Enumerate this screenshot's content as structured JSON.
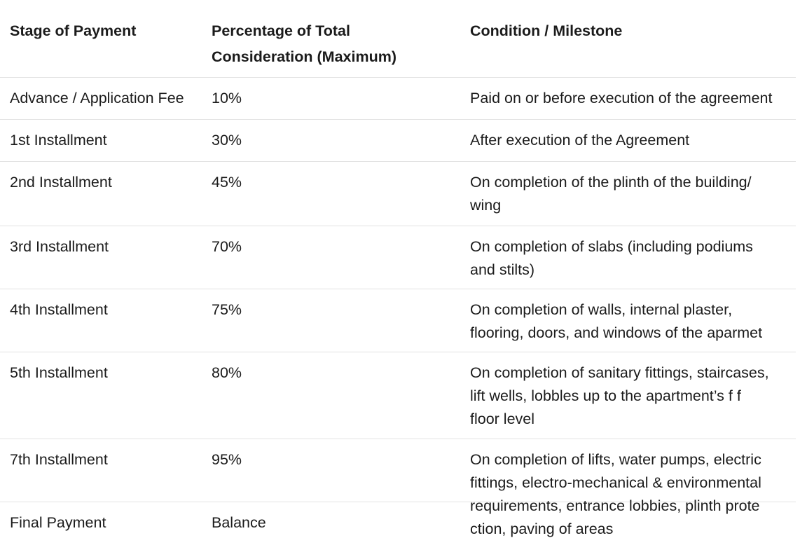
{
  "table": {
    "header": [
      [
        "Stage of Payment"
      ],
      [
        "Percentage of Total",
        "Consideration (Maximum)"
      ],
      [
        "Condition / Milestone"
      ]
    ],
    "rows": [
      [
        [
          "Advance / Application Fee"
        ],
        [
          "10%"
        ],
        [
          "Paid on or before execution of the agreement"
        ]
      ],
      [
        [
          "1st Installment"
        ],
        [
          "30%"
        ],
        [
          "After execution of the Agreement"
        ]
      ],
      [
        [
          "2nd Installment"
        ],
        [
          "45%"
        ],
        [
          "On completion of the plinth of the building/",
          "wing"
        ]
      ],
      [
        [
          "3rd Installment"
        ],
        [
          "70%"
        ],
        [
          "On completion of slabs (including podiums",
          "and stilts)"
        ]
      ],
      [
        [
          "4th Installment"
        ],
        [
          "75%"
        ],
        [
          "On completion of walls, internal plaster,",
          "flooring, doors, and windows of the aparmet"
        ]
      ],
      [
        [
          "5th Installment"
        ],
        [
          "80%"
        ],
        [
          "On completion of sanitary fittings, staircases,",
          "lift wells, lobbles up to the apartment’s f f",
          "floor level"
        ]
      ],
      [
        [
          "7th Installment"
        ],
        [
          "95%"
        ],
        [
          "On completion of lifts, water pumps, electric",
          "fittings, electro-mechanical & environmental",
          "requirements, entrance lobbies, plinth prote",
          "ction, paving of areas"
        ]
      ],
      [
        [
          "Final Payment"
        ],
        [
          "Balance"
        ],
        []
      ]
    ]
  }
}
